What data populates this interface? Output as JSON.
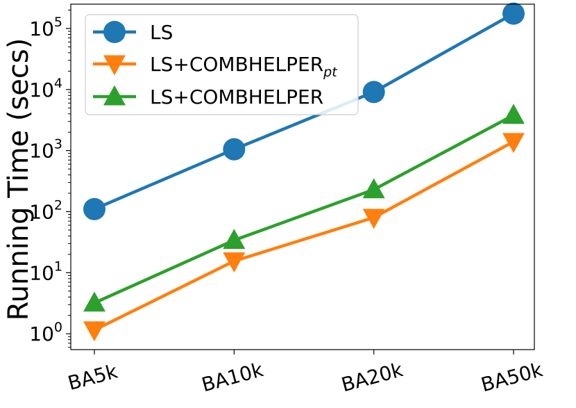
{
  "chart_data": {
    "type": "line",
    "ylabel": "Running Time (secs)",
    "xlabel": "",
    "yscale": "log",
    "ylim": [
      0.55,
      250000
    ],
    "categories": [
      "BA5k",
      "BA10k",
      "BA20k",
      "BA50k"
    ],
    "ytick_values": [
      1,
      10,
      100,
      1000,
      10000,
      100000
    ],
    "ytick_exponents": [
      "0",
      "1",
      "2",
      "3",
      "4",
      "5"
    ],
    "ytick_base": "10",
    "legend_position": "top-left",
    "grid": false,
    "series": [
      {
        "name": "LS",
        "marker": "circle",
        "color": "#1f77b4",
        "values": [
          110,
          1050,
          9100,
          175000
        ]
      },
      {
        "name": "LS+COMBHELPER",
        "name_subscript": "pt",
        "marker": "triangle-down",
        "color": "#ff7f0e",
        "values": [
          1.15,
          15.5,
          80,
          1400
        ]
      },
      {
        "name": "LS+COMBHELPER",
        "marker": "triangle-up",
        "color": "#2ca02c",
        "values": [
          3.2,
          34,
          230,
          3800
        ]
      }
    ]
  }
}
